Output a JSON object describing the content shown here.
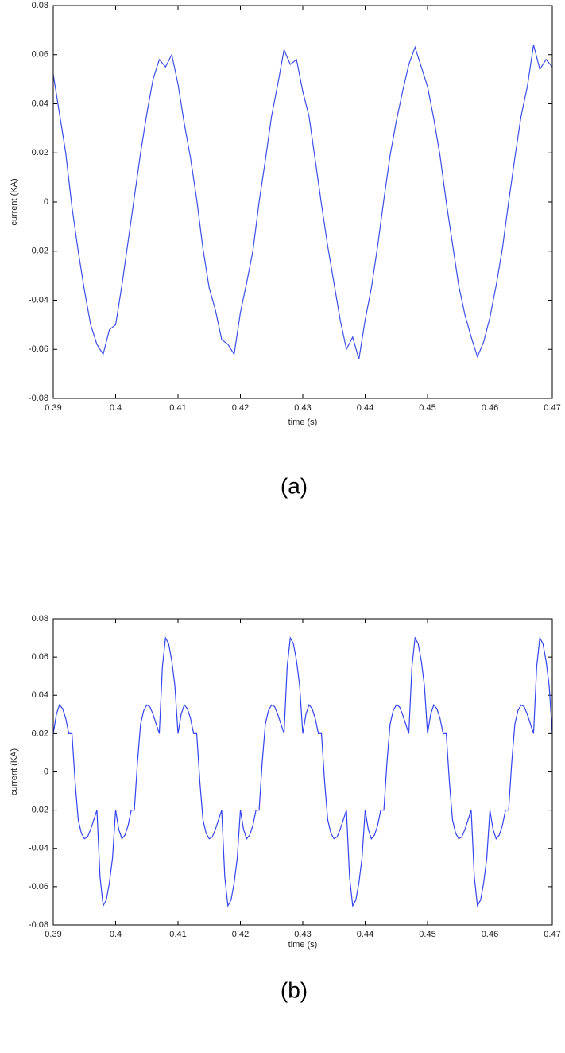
{
  "chart_data": [
    {
      "type": "line",
      "caption": "(a)",
      "xlabel": "time (s)",
      "ylabel": "current (KA)",
      "color": "#3b4fe6",
      "xlim": [
        0.39,
        0.47
      ],
      "xticks": [
        0.39,
        0.4,
        0.41,
        0.42,
        0.43,
        0.44,
        0.45,
        0.46,
        0.47
      ],
      "ylim": [
        -0.08,
        0.08
      ],
      "yticks": [
        -0.08,
        -0.06,
        -0.04,
        -0.02,
        0,
        0.02,
        0.04,
        0.06,
        0.08
      ],
      "x": [
        0.39,
        0.391,
        0.392,
        0.393,
        0.394,
        0.395,
        0.396,
        0.397,
        0.398,
        0.399,
        0.4,
        0.401,
        0.402,
        0.403,
        0.404,
        0.405,
        0.406,
        0.407,
        0.408,
        0.409,
        0.41,
        0.411,
        0.412,
        0.413,
        0.414,
        0.415,
        0.416,
        0.417,
        0.418,
        0.419,
        0.42,
        0.421,
        0.422,
        0.423,
        0.424,
        0.425,
        0.426,
        0.427,
        0.428,
        0.429,
        0.43,
        0.431,
        0.432,
        0.433,
        0.434,
        0.435,
        0.436,
        0.437,
        0.438,
        0.439,
        0.44,
        0.441,
        0.442,
        0.443,
        0.444,
        0.445,
        0.446,
        0.447,
        0.448,
        0.449,
        0.45,
        0.451,
        0.452,
        0.453,
        0.454,
        0.455,
        0.456,
        0.457,
        0.458,
        0.459,
        0.46,
        0.461,
        0.462,
        0.463,
        0.464,
        0.465,
        0.466,
        0.467,
        0.468,
        0.469,
        0.47
      ],
      "values": [
        0.052,
        0.036,
        0.02,
        -0.002,
        -0.02,
        -0.036,
        -0.05,
        -0.058,
        -0.062,
        -0.052,
        -0.05,
        -0.034,
        -0.016,
        0.002,
        0.02,
        0.036,
        0.05,
        0.058,
        0.055,
        0.06,
        0.048,
        0.032,
        0.018,
        0.001,
        -0.019,
        -0.035,
        -0.044,
        -0.056,
        -0.058,
        -0.062,
        -0.045,
        -0.033,
        -0.02,
        0,
        0.017,
        0.035,
        0.048,
        0.062,
        0.056,
        0.058,
        0.045,
        0.035,
        0.017,
        -0.001,
        -0.018,
        -0.033,
        -0.048,
        -0.06,
        -0.055,
        -0.064,
        -0.048,
        -0.035,
        -0.018,
        0.001,
        0.019,
        0.033,
        0.045,
        0.056,
        0.063,
        0.055,
        0.047,
        0.034,
        0.019,
        0,
        -0.017,
        -0.034,
        -0.046,
        -0.055,
        -0.063,
        -0.057,
        -0.047,
        -0.034,
        -0.019,
        0,
        0.018,
        0.035,
        0.047,
        0.064,
        0.054,
        0.058,
        0.055
      ]
    },
    {
      "type": "line",
      "caption": "(b)",
      "xlabel": "time (s)",
      "ylabel": "current (KA)",
      "color": "#3344ee",
      "xlim": [
        0.39,
        0.47
      ],
      "xticks": [
        0.39,
        0.4,
        0.41,
        0.42,
        0.43,
        0.44,
        0.45,
        0.46,
        0.47
      ],
      "ylim": [
        -0.08,
        0.08
      ],
      "yticks": [
        -0.08,
        -0.06,
        -0.04,
        -0.02,
        0,
        0.02,
        0.04,
        0.06,
        0.08
      ],
      "x": [
        0.39,
        0.3905,
        0.391,
        0.3915,
        0.392,
        0.3925,
        0.393,
        0.3935,
        0.394,
        0.3945,
        0.395,
        0.3955,
        0.396,
        0.3965,
        0.397,
        0.3975,
        0.398,
        0.3985,
        0.399,
        0.3995,
        0.4,
        0.4005,
        0.401,
        0.4015,
        0.402,
        0.4025,
        0.403,
        0.4035,
        0.404,
        0.4045,
        0.405,
        0.4055,
        0.406,
        0.4065,
        0.407,
        0.4075,
        0.408,
        0.4085,
        0.409,
        0.4095,
        0.41,
        0.4105,
        0.411,
        0.4115,
        0.412,
        0.4125,
        0.413,
        0.4135,
        0.414,
        0.4145,
        0.415,
        0.4155,
        0.416,
        0.4165,
        0.417,
        0.4175,
        0.418,
        0.4185,
        0.419,
        0.4195,
        0.42,
        0.4205,
        0.421,
        0.4215,
        0.422,
        0.4225,
        0.423,
        0.4235,
        0.424,
        0.4245,
        0.425,
        0.4255,
        0.426,
        0.4265,
        0.427,
        0.4275,
        0.428,
        0.4285,
        0.429,
        0.4295,
        0.43,
        0.4305,
        0.431,
        0.4315,
        0.432,
        0.4325,
        0.433,
        0.4335,
        0.434,
        0.4345,
        0.435,
        0.4355,
        0.436,
        0.4365,
        0.437,
        0.4375,
        0.438,
        0.4385,
        0.439,
        0.4395,
        0.44,
        0.4405,
        0.441,
        0.4415,
        0.442,
        0.4425,
        0.443,
        0.4435,
        0.444,
        0.4445,
        0.445,
        0.4455,
        0.446,
        0.4465,
        0.447,
        0.4475,
        0.448,
        0.4485,
        0.449,
        0.4495,
        0.45,
        0.4505,
        0.451,
        0.4515,
        0.452,
        0.4525,
        0.453,
        0.4535,
        0.454,
        0.4545,
        0.455,
        0.4555,
        0.456,
        0.4565,
        0.457,
        0.4575,
        0.458,
        0.4585,
        0.459,
        0.4595,
        0.46,
        0.4605,
        0.461,
        0.4615,
        0.462,
        0.4625,
        0.463,
        0.4635,
        0.464,
        0.4645,
        0.465,
        0.4655,
        0.466,
        0.4665,
        0.467,
        0.4675,
        0.468,
        0.4685,
        0.469,
        0.4695,
        0.47
      ],
      "values": [
        0.02,
        0.03,
        0.035,
        0.033,
        0.028,
        0.02,
        0.02,
        -0.005,
        -0.025,
        -0.032,
        -0.035,
        -0.034,
        -0.03,
        -0.025,
        -0.02,
        -0.055,
        -0.07,
        -0.067,
        -0.058,
        -0.045,
        -0.02,
        -0.03,
        -0.035,
        -0.033,
        -0.028,
        -0.02,
        -0.02,
        0.005,
        0.025,
        0.032,
        0.035,
        0.034,
        0.03,
        0.025,
        0.02,
        0.055,
        0.07,
        0.067,
        0.058,
        0.045,
        0.02,
        0.03,
        0.035,
        0.033,
        0.028,
        0.02,
        0.02,
        -0.005,
        -0.025,
        -0.032,
        -0.035,
        -0.034,
        -0.03,
        -0.025,
        -0.02,
        -0.055,
        -0.07,
        -0.067,
        -0.058,
        -0.045,
        -0.02,
        -0.03,
        -0.035,
        -0.033,
        -0.028,
        -0.02,
        -0.02,
        0.005,
        0.025,
        0.032,
        0.035,
        0.034,
        0.03,
        0.025,
        0.02,
        0.055,
        0.07,
        0.067,
        0.058,
        0.045,
        0.02,
        0.03,
        0.035,
        0.033,
        0.028,
        0.02,
        0.02,
        -0.005,
        -0.025,
        -0.032,
        -0.035,
        -0.034,
        -0.03,
        -0.025,
        -0.02,
        -0.055,
        -0.07,
        -0.067,
        -0.058,
        -0.045,
        -0.02,
        -0.03,
        -0.035,
        -0.033,
        -0.028,
        -0.02,
        -0.02,
        0.005,
        0.025,
        0.032,
        0.035,
        0.034,
        0.03,
        0.025,
        0.02,
        0.055,
        0.07,
        0.067,
        0.058,
        0.045,
        0.02,
        0.03,
        0.035,
        0.033,
        0.028,
        0.02,
        0.02,
        -0.005,
        -0.025,
        -0.032,
        -0.035,
        -0.034,
        -0.03,
        -0.025,
        -0.02,
        -0.055,
        -0.07,
        -0.067,
        -0.058,
        -0.045,
        -0.02,
        -0.03,
        -0.035,
        -0.033,
        -0.028,
        -0.02,
        -0.02,
        0.005,
        0.025,
        0.032,
        0.035,
        0.034,
        0.03,
        0.025,
        0.02,
        0.055,
        0.07,
        0.067,
        0.058,
        0.045,
        0.02
      ]
    }
  ]
}
